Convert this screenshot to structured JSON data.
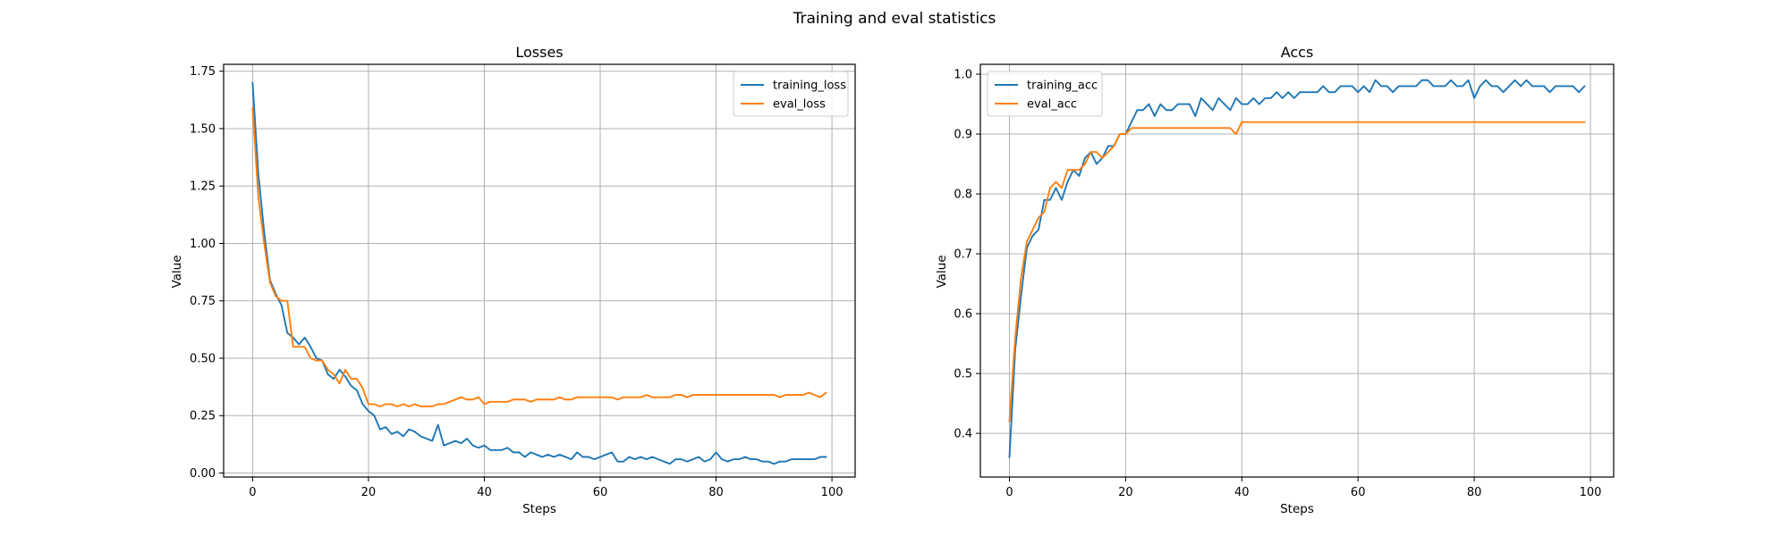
{
  "figure": {
    "suptitle": "Training and eval statistics"
  },
  "chart_data": [
    {
      "type": "line",
      "title": "Losses",
      "xlabel": "Steps",
      "ylabel": "Value",
      "xlim": [
        -5,
        104
      ],
      "ylim": [
        -0.0175,
        1.78
      ],
      "xticks": [
        0,
        20,
        40,
        60,
        80,
        100
      ],
      "yticks": [
        0.0,
        0.25,
        0.5,
        0.75,
        1.0,
        1.25,
        1.5,
        1.75
      ],
      "ytick_labels": [
        "0.00",
        "0.25",
        "0.50",
        "0.75",
        "1.00",
        "1.25",
        "1.50",
        "1.75"
      ],
      "grid": true,
      "legend": "top-right",
      "x": [
        0,
        1,
        2,
        3,
        4,
        5,
        6,
        7,
        8,
        9,
        10,
        11,
        12,
        13,
        14,
        15,
        16,
        17,
        18,
        19,
        20,
        21,
        22,
        23,
        24,
        25,
        26,
        27,
        28,
        29,
        30,
        31,
        32,
        33,
        34,
        35,
        36,
        37,
        38,
        39,
        40,
        41,
        42,
        43,
        44,
        45,
        46,
        47,
        48,
        49,
        50,
        51,
        52,
        53,
        54,
        55,
        56,
        57,
        58,
        59,
        60,
        61,
        62,
        63,
        64,
        65,
        66,
        67,
        68,
        69,
        70,
        71,
        72,
        73,
        74,
        75,
        76,
        77,
        78,
        79,
        80,
        81,
        82,
        83,
        84,
        85,
        86,
        87,
        88,
        89,
        90,
        91,
        92,
        93,
        94,
        95,
        96,
        97,
        98,
        99
      ],
      "series": [
        {
          "name": "training_loss",
          "color": "#1f77b4",
          "values": [
            1.7,
            1.3,
            1.05,
            0.84,
            0.78,
            0.73,
            0.61,
            0.59,
            0.56,
            0.59,
            0.55,
            0.5,
            0.49,
            0.43,
            0.41,
            0.45,
            0.42,
            0.38,
            0.36,
            0.3,
            0.27,
            0.25,
            0.19,
            0.2,
            0.17,
            0.18,
            0.16,
            0.19,
            0.18,
            0.16,
            0.15,
            0.14,
            0.21,
            0.12,
            0.13,
            0.14,
            0.13,
            0.15,
            0.12,
            0.11,
            0.12,
            0.1,
            0.1,
            0.1,
            0.11,
            0.09,
            0.09,
            0.07,
            0.09,
            0.08,
            0.07,
            0.08,
            0.07,
            0.08,
            0.07,
            0.06,
            0.09,
            0.07,
            0.07,
            0.06,
            0.07,
            0.08,
            0.09,
            0.05,
            0.05,
            0.07,
            0.06,
            0.07,
            0.06,
            0.07,
            0.06,
            0.05,
            0.04,
            0.06,
            0.06,
            0.05,
            0.06,
            0.07,
            0.05,
            0.06,
            0.09,
            0.06,
            0.05,
            0.06,
            0.06,
            0.07,
            0.06,
            0.06,
            0.05,
            0.05,
            0.04,
            0.05,
            0.05,
            0.06,
            0.06,
            0.06,
            0.06,
            0.06,
            0.07,
            0.07
          ]
        },
        {
          "name": "eval_loss",
          "color": "#ff7f0e",
          "values": [
            1.59,
            1.2,
            1.0,
            0.83,
            0.77,
            0.75,
            0.75,
            0.55,
            0.55,
            0.55,
            0.5,
            0.49,
            0.49,
            0.45,
            0.43,
            0.39,
            0.45,
            0.41,
            0.41,
            0.37,
            0.3,
            0.3,
            0.29,
            0.3,
            0.3,
            0.29,
            0.3,
            0.29,
            0.3,
            0.29,
            0.29,
            0.29,
            0.3,
            0.3,
            0.31,
            0.32,
            0.33,
            0.32,
            0.32,
            0.33,
            0.3,
            0.31,
            0.31,
            0.31,
            0.31,
            0.32,
            0.32,
            0.32,
            0.31,
            0.32,
            0.32,
            0.32,
            0.32,
            0.33,
            0.32,
            0.32,
            0.33,
            0.33,
            0.33,
            0.33,
            0.33,
            0.33,
            0.33,
            0.32,
            0.33,
            0.33,
            0.33,
            0.33,
            0.34,
            0.33,
            0.33,
            0.33,
            0.33,
            0.34,
            0.34,
            0.33,
            0.34,
            0.34,
            0.34,
            0.34,
            0.34,
            0.34,
            0.34,
            0.34,
            0.34,
            0.34,
            0.34,
            0.34,
            0.34,
            0.34,
            0.34,
            0.33,
            0.34,
            0.34,
            0.34,
            0.34,
            0.35,
            0.34,
            0.33,
            0.35
          ]
        }
      ]
    },
    {
      "type": "line",
      "title": "Accs",
      "xlabel": "Steps",
      "ylabel": "Value",
      "xlim": [
        -5,
        104
      ],
      "ylim": [
        0.327,
        1.0165
      ],
      "xticks": [
        0,
        20,
        40,
        60,
        80,
        100
      ],
      "yticks": [
        0.4,
        0.5,
        0.6,
        0.7,
        0.8,
        0.9,
        1.0
      ],
      "ytick_labels": [
        "0.4",
        "0.5",
        "0.6",
        "0.7",
        "0.8",
        "0.9",
        "1.0"
      ],
      "grid": true,
      "legend": "top-left",
      "x": [
        0,
        1,
        2,
        3,
        4,
        5,
        6,
        7,
        8,
        9,
        10,
        11,
        12,
        13,
        14,
        15,
        16,
        17,
        18,
        19,
        20,
        21,
        22,
        23,
        24,
        25,
        26,
        27,
        28,
        29,
        30,
        31,
        32,
        33,
        34,
        35,
        36,
        37,
        38,
        39,
        40,
        41,
        42,
        43,
        44,
        45,
        46,
        47,
        48,
        49,
        50,
        51,
        52,
        53,
        54,
        55,
        56,
        57,
        58,
        59,
        60,
        61,
        62,
        63,
        64,
        65,
        66,
        67,
        68,
        69,
        70,
        71,
        72,
        73,
        74,
        75,
        76,
        77,
        78,
        79,
        80,
        81,
        82,
        83,
        84,
        85,
        86,
        87,
        88,
        89,
        90,
        91,
        92,
        93,
        94,
        95,
        96,
        97,
        98,
        99
      ],
      "series": [
        {
          "name": "training_acc",
          "color": "#1f77b4",
          "values": [
            0.36,
            0.54,
            0.63,
            0.71,
            0.73,
            0.74,
            0.79,
            0.79,
            0.81,
            0.79,
            0.82,
            0.84,
            0.83,
            0.86,
            0.87,
            0.85,
            0.86,
            0.88,
            0.88,
            0.9,
            0.9,
            0.92,
            0.94,
            0.94,
            0.95,
            0.93,
            0.95,
            0.94,
            0.94,
            0.95,
            0.95,
            0.95,
            0.93,
            0.96,
            0.95,
            0.94,
            0.96,
            0.95,
            0.94,
            0.96,
            0.95,
            0.95,
            0.96,
            0.95,
            0.96,
            0.96,
            0.97,
            0.96,
            0.97,
            0.96,
            0.97,
            0.97,
            0.97,
            0.97,
            0.98,
            0.97,
            0.97,
            0.98,
            0.98,
            0.98,
            0.97,
            0.98,
            0.97,
            0.99,
            0.98,
            0.98,
            0.97,
            0.98,
            0.98,
            0.98,
            0.98,
            0.99,
            0.99,
            0.98,
            0.98,
            0.98,
            0.99,
            0.98,
            0.98,
            0.99,
            0.96,
            0.98,
            0.99,
            0.98,
            0.98,
            0.97,
            0.98,
            0.99,
            0.98,
            0.99,
            0.98,
            0.98,
            0.98,
            0.97,
            0.98,
            0.98,
            0.98,
            0.98,
            0.97,
            0.98
          ]
        },
        {
          "name": "eval_acc",
          "color": "#ff7f0e",
          "values": [
            0.42,
            0.56,
            0.66,
            0.72,
            0.74,
            0.76,
            0.77,
            0.81,
            0.82,
            0.81,
            0.84,
            0.84,
            0.84,
            0.85,
            0.87,
            0.87,
            0.86,
            0.87,
            0.88,
            0.9,
            0.9,
            0.91,
            0.91,
            0.91,
            0.91,
            0.91,
            0.91,
            0.91,
            0.91,
            0.91,
            0.91,
            0.91,
            0.91,
            0.91,
            0.91,
            0.91,
            0.91,
            0.91,
            0.91,
            0.9,
            0.92,
            0.92,
            0.92,
            0.92,
            0.92,
            0.92,
            0.92,
            0.92,
            0.92,
            0.92,
            0.92,
            0.92,
            0.92,
            0.92,
            0.92,
            0.92,
            0.92,
            0.92,
            0.92,
            0.92,
            0.92,
            0.92,
            0.92,
            0.92,
            0.92,
            0.92,
            0.92,
            0.92,
            0.92,
            0.92,
            0.92,
            0.92,
            0.92,
            0.92,
            0.92,
            0.92,
            0.92,
            0.92,
            0.92,
            0.92,
            0.92,
            0.92,
            0.92,
            0.92,
            0.92,
            0.92,
            0.92,
            0.92,
            0.92,
            0.92,
            0.92,
            0.92,
            0.92,
            0.92,
            0.92,
            0.92,
            0.92,
            0.92,
            0.92,
            0.92
          ]
        }
      ]
    }
  ]
}
